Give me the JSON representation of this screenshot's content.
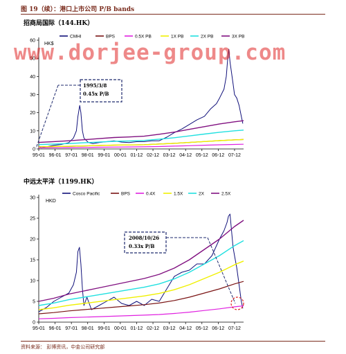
{
  "figure": {
    "title": "图 19（续）：港口上市公司 P/B bands",
    "source": "资料来源：  彭博资讯，中金公司研究部",
    "watermark": "www.dorjee-group.com"
  },
  "colors": {
    "price": "#10107a",
    "bps": "#7a1313",
    "band_low": "#e020e0",
    "band_mid": "#f0f000",
    "band_hi": "#20e0e0",
    "band_top": "#801080",
    "accent": "#7a2b1c",
    "annot_box": "#1e2a6e",
    "circle": "#e02020"
  },
  "chart_data": [
    {
      "type": "line",
      "title": "招商局国际（144.HK）",
      "ylabel": "HK$",
      "ylim": [
        0,
        60
      ],
      "yticks": [
        "0",
        "10",
        "20",
        "30",
        "40",
        "50",
        "60"
      ],
      "xlim": [
        1995.0,
        2008.6
      ],
      "xticks": [
        "95-01",
        "96-01",
        "97-01",
        "98-01",
        "99-01",
        "00-01",
        "01-12",
        "02-12",
        "03-12",
        "04-12",
        "05-12",
        "06-12",
        "07-12"
      ],
      "legend_placement": "top",
      "grid": false,
      "annotation": {
        "lines": [
          "1995/3/8",
          "0.45x P/B"
        ]
      },
      "bps": {
        "x": [
          1995.0,
          1996.0,
          1997.0,
          1998.0,
          1999.0,
          2000.0,
          2001.0,
          2002.0,
          2003.0,
          2004.0,
          2005.0,
          2006.0,
          2007.0,
          2008.0,
          2008.6
        ],
        "y": [
          1.2,
          1.35,
          1.5,
          1.7,
          1.9,
          2.1,
          2.2,
          2.35,
          2.7,
          3.1,
          3.6,
          4.1,
          4.6,
          5.0,
          5.2
        ]
      },
      "series": [
        {
          "name": "CMHI",
          "style": "price",
          "x": [
            1995.0,
            1995.17,
            1995.5,
            1996.0,
            1996.5,
            1997.0,
            1997.3,
            1997.5,
            1997.6,
            1997.72,
            1997.8,
            1997.9,
            1998.0,
            1998.3,
            1998.6,
            1999.0,
            1999.5,
            2000.0,
            2000.5,
            2001.0,
            2001.5,
            2002.0,
            2002.5,
            2003.0,
            2003.5,
            2004.0,
            2004.5,
            2005.0,
            2005.5,
            2006.0,
            2006.4,
            2006.8,
            2007.0,
            2007.3,
            2007.45,
            2007.55,
            2007.62,
            2007.7,
            2007.8,
            2007.9,
            2008.0,
            2008.15,
            2008.3,
            2008.45,
            2008.55
          ],
          "y": [
            1.5,
            0.55,
            1.2,
            2.0,
            2.5,
            3.5,
            6.0,
            10.0,
            18.0,
            24.0,
            20.0,
            10.0,
            6.0,
            3.5,
            3.0,
            3.5,
            4.0,
            4.5,
            3.8,
            3.5,
            4.0,
            4.0,
            4.5,
            4.5,
            6.5,
            9.0,
            11.0,
            13.5,
            16.0,
            18.0,
            22.0,
            25.0,
            28.0,
            33.0,
            40.0,
            50.0,
            55.0,
            48.0,
            42.0,
            36.0,
            30.0,
            28.0,
            24.0,
            18.0,
            14.0
          ]
        },
        {
          "name": "BPS",
          "style": "bps",
          "derive": 1
        },
        {
          "name": "0.5X PB",
          "style": "band_low",
          "derive": 0.5
        },
        {
          "name": "1X PB",
          "style": "band_mid",
          "derive": 1
        },
        {
          "name": "2X PB",
          "style": "band_hi",
          "derive": 2
        },
        {
          "name": "3X PB",
          "style": "band_top",
          "derive": 3
        }
      ]
    },
    {
      "type": "line",
      "title": "中远太平洋（1199.HK）",
      "ylabel": "HKD",
      "ylim": [
        0,
        30
      ],
      "yticks": [
        "0",
        "5",
        "10",
        "15",
        "20",
        "25",
        "30"
      ],
      "xlim": [
        1995.0,
        2008.6
      ],
      "xticks": [
        "95-01",
        "96-01",
        "97-01",
        "98-01",
        "99-01",
        "00-01",
        "01-12",
        "02-12",
        "03-12",
        "04-12",
        "05-12",
        "06-12",
        "07-12"
      ],
      "legend_placement": "top",
      "grid": false,
      "annotation": {
        "lines": [
          "2008/10/26",
          "0.33x P/B"
        ]
      },
      "bps": {
        "x": [
          1995.0,
          1996.0,
          1997.0,
          1998.0,
          1999.0,
          2000.0,
          2001.0,
          2002.0,
          2003.0,
          2004.0,
          2005.0,
          2006.0,
          2007.0,
          2008.0,
          2008.6
        ],
        "y": [
          2.0,
          2.3,
          2.7,
          3.0,
          3.3,
          3.6,
          3.9,
          4.2,
          4.6,
          5.2,
          6.0,
          7.0,
          8.0,
          9.2,
          9.8
        ]
      },
      "series": [
        {
          "name": "Cosco Pacific",
          "style": "price",
          "x": [
            1995.0,
            1995.5,
            1996.0,
            1996.5,
            1997.0,
            1997.3,
            1997.5,
            1997.6,
            1997.7,
            1997.8,
            1997.9,
            1998.0,
            1998.2,
            1998.5,
            1999.0,
            1999.5,
            2000.0,
            2000.5,
            2001.0,
            2001.5,
            2002.0,
            2002.5,
            2003.0,
            2003.5,
            2004.0,
            2004.5,
            2005.0,
            2005.5,
            2006.0,
            2006.5,
            2007.0,
            2007.3,
            2007.5,
            2007.6,
            2007.7,
            2007.8,
            2007.9,
            2008.0,
            2008.15,
            2008.3,
            2008.45,
            2008.55
          ],
          "y": [
            2.5,
            3.5,
            5.0,
            6.0,
            7.0,
            9.0,
            12.0,
            17.0,
            18.0,
            14.0,
            8.0,
            4.0,
            6.0,
            3.0,
            4.0,
            5.0,
            6.0,
            4.5,
            4.0,
            5.0,
            4.0,
            5.5,
            5.0,
            8.0,
            11.0,
            12.0,
            12.5,
            14.0,
            14.0,
            16.0,
            20.0,
            22.0,
            24.0,
            25.5,
            26.0,
            22.0,
            18.0,
            16.0,
            13.0,
            9.0,
            5.0,
            3.3
          ]
        },
        {
          "name": "BPS",
          "style": "bps",
          "derive": 1
        },
        {
          "name": "0.4X",
          "style": "band_low",
          "derive": 0.4
        },
        {
          "name": "1.5X",
          "style": "band_mid",
          "derive": 1.5
        },
        {
          "name": "2X",
          "style": "band_hi",
          "derive": 2
        },
        {
          "name": "2.5X",
          "style": "band_top",
          "derive": 2.5
        }
      ]
    }
  ]
}
